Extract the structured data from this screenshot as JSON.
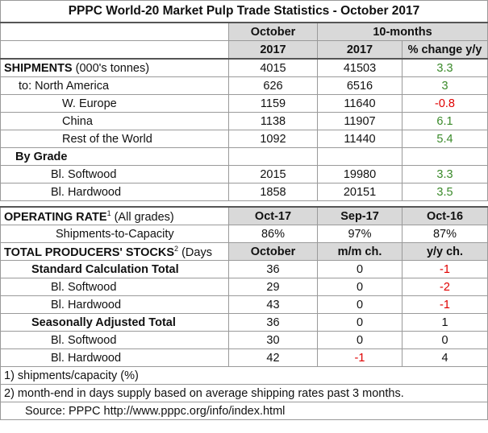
{
  "title": "PPPC World-20 Market Pulp Trade Statistics - October 2017",
  "header": {
    "month": "October",
    "period": "10-months",
    "year1": "2017",
    "year2": "2017",
    "change": "% change y/y"
  },
  "shipments": {
    "label": "SHIPMENTS",
    "unit": "(000's tonnes)",
    "values": [
      4015,
      41503,
      3.3
    ],
    "rows": [
      {
        "label": "to: North America",
        "values": [
          626,
          6516,
          3
        ]
      },
      {
        "label": "W. Europe",
        "values": [
          1159,
          11640,
          -0.8
        ]
      },
      {
        "label": "China",
        "values": [
          1138,
          11907,
          6.1
        ]
      },
      {
        "label": "Rest of the World",
        "values": [
          1092,
          11440,
          5.4
        ]
      }
    ]
  },
  "by_grade": {
    "label": "By Grade",
    "rows": [
      {
        "label": "Bl. Softwood",
        "values": [
          2015,
          19980,
          3.3
        ]
      },
      {
        "label": "Bl. Hardwood",
        "values": [
          1858,
          20151,
          3.5
        ]
      }
    ]
  },
  "operating_rate": {
    "label": "OPERATING RATE",
    "note": "1",
    "scope": "(All grades)",
    "columns": [
      "Oct-17",
      "Sep-17",
      "Oct-16"
    ],
    "rows": [
      {
        "label": "Shipments-to-Capacity",
        "values": [
          "86%",
          "97%",
          "87%"
        ]
      }
    ]
  },
  "stocks": {
    "label": "TOTAL PRODUCERS' STOCKS",
    "note": "2",
    "scope": "(Days",
    "columns": [
      "October",
      "m/m ch.",
      "y/y ch."
    ],
    "groups": [
      {
        "label": "Standard Calculation Total",
        "values": [
          36,
          0,
          -1
        ],
        "rows": [
          {
            "label": "Bl. Softwood",
            "values": [
              29,
              0,
              -2
            ]
          },
          {
            "label": "Bl. Hardwood",
            "values": [
              43,
              0,
              -1
            ]
          }
        ]
      },
      {
        "label": "Seasonally Adjusted Total",
        "values": [
          36,
          0,
          1
        ],
        "rows": [
          {
            "label": "Bl. Softwood",
            "values": [
              30,
              0,
              0
            ]
          },
          {
            "label": "Bl. Hardwood",
            "values": [
              42,
              -1,
              4
            ]
          }
        ]
      }
    ]
  },
  "footnotes": [
    "1) shipments/capacity (%)",
    "2) month-end in days supply based on average shipping rates past 3 months."
  ],
  "source": "Source: PPPC  http://www.pppc.org/info/index.html",
  "colors": {
    "positive_change": "#3a8a2a",
    "negative": "#e00000",
    "header_fill": "#d9d9d9"
  }
}
